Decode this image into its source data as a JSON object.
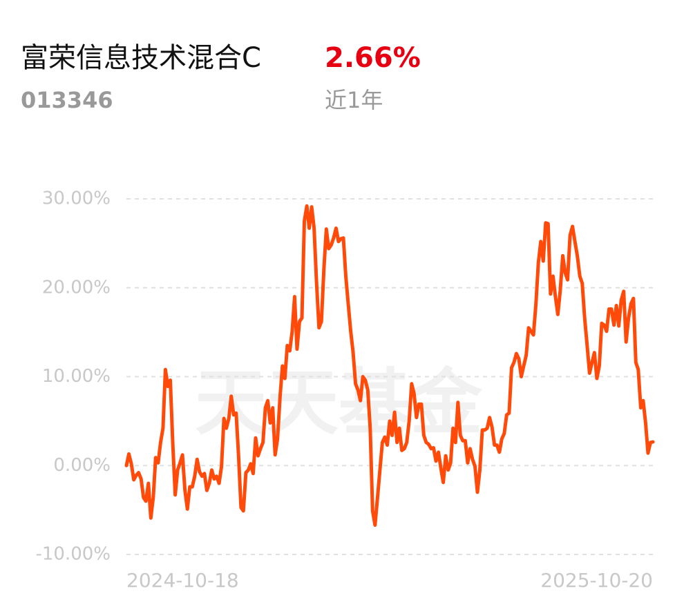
{
  "header": {
    "title": "富荣信息技术混合C",
    "change": {
      "value": 2.66,
      "label": "2.66%"
    },
    "code": "013346",
    "period": "近1年"
  },
  "chart_data": {
    "type": "line",
    "watermark": "天天基金",
    "categories": [
      "2024-10-18",
      null,
      null,
      null,
      null,
      null,
      null,
      null,
      null,
      null,
      null,
      null,
      null,
      null,
      null,
      null,
      null,
      null,
      null,
      null,
      null,
      null,
      null,
      null,
      null,
      null,
      null,
      null,
      null,
      null,
      null,
      null,
      null,
      null,
      null,
      null,
      null,
      null,
      null,
      null,
      null,
      null,
      null,
      null,
      null,
      null,
      null,
      null,
      null,
      null,
      null,
      null,
      null,
      null,
      null,
      null,
      null,
      null,
      null,
      null,
      null,
      null,
      null,
      null,
      null,
      null,
      null,
      null,
      null,
      null,
      null,
      null,
      null,
      null,
      null,
      null,
      null,
      null,
      null,
      null,
      null,
      null,
      null,
      null,
      null,
      null,
      null,
      null,
      null,
      null,
      null,
      null,
      null,
      null,
      null,
      null,
      null,
      null,
      null,
      null,
      null,
      null,
      null,
      null,
      null,
      null,
      null,
      null,
      null,
      null,
      null,
      null,
      null,
      null,
      null,
      null,
      null,
      null,
      null,
      null,
      null,
      null,
      null,
      null,
      null,
      null,
      null,
      null,
      null,
      null,
      null,
      null,
      null,
      null,
      null,
      null,
      null,
      null,
      null,
      null,
      null,
      null,
      null,
      null,
      null,
      null,
      null,
      null,
      null,
      null,
      null,
      null,
      null,
      null,
      null,
      null,
      null,
      null,
      null,
      null,
      null,
      null,
      null,
      null,
      null,
      null,
      null,
      null,
      null,
      null,
      null,
      null,
      null,
      null,
      null,
      null,
      null,
      null,
      null,
      null,
      null,
      null,
      null,
      null,
      null,
      null,
      null,
      null,
      null,
      null,
      null,
      null,
      null,
      null,
      null,
      null,
      null,
      null,
      null,
      null,
      null,
      null,
      null,
      null,
      null,
      null,
      null,
      null,
      null,
      null,
      null,
      null,
      null,
      null,
      null,
      null,
      "2025-10-20"
    ],
    "series": [
      {
        "color": "#ff4a0a",
        "values": [
          0,
          1.3,
          0.2,
          -1.6,
          -1.1,
          -0.8,
          -1.5,
          -3.6,
          -4.0,
          -2.0,
          -5.9,
          -3.6,
          0.9,
          0.3,
          2.6,
          4.2,
          10.8,
          8.9,
          9.6,
          2.6,
          -3.3,
          -0.5,
          0.3,
          1.2,
          -2.8,
          -4.9,
          -2.4,
          -2.4,
          -1.2,
          0.7,
          -0.7,
          -1.2,
          -0.9,
          -2.8,
          -2.0,
          -0.5,
          -1.5,
          -1.2,
          -2.0,
          -0.1,
          5.3,
          4.2,
          5.3,
          7.8,
          5.7,
          5.9,
          1.1,
          -4.7,
          -5.1,
          -0.8,
          -0.5,
          0.2,
          -0.9,
          3.1,
          1.1,
          1.9,
          2.6,
          6.5,
          7.3,
          4.8,
          6.5,
          1.2,
          3.0,
          7.7,
          11.2,
          9.8,
          13.5,
          12.9,
          15.1,
          19.0,
          13.1,
          16.2,
          16.6,
          27.5,
          29.2,
          26.7,
          29.1,
          26.7,
          20.5,
          15.5,
          16.2,
          22.1,
          26.6,
          24.4,
          24.8,
          25.6,
          26.7,
          25.2,
          25.5,
          25.6,
          21.3,
          18.2,
          15.1,
          12.7,
          9.2,
          8.5,
          7.3,
          10.0,
          9.6,
          8.5,
          4.2,
          -5.1,
          -6.7,
          -3.6,
          -0.5,
          2.6,
          3.2,
          2.3,
          5.0,
          3.4,
          6.0,
          2.6,
          4.2,
          1.7,
          1.9,
          2.6,
          5.0,
          9.2,
          8.1,
          5.4,
          6.9,
          6.9,
          3.4,
          2.6,
          2.4,
          1.9,
          2.0,
          0.5,
          1.5,
          -0.3,
          -1.9,
          1.1,
          -0.5,
          0.3,
          4.2,
          2.6,
          7.1,
          3.4,
          2.8,
          2.8,
          0.3,
          1.9,
          0.7,
          -0.1,
          -3.0,
          -0.5,
          4.0,
          4.0,
          4.2,
          5.4,
          4.3,
          2.3,
          2.3,
          1.5,
          3.0,
          3.6,
          5.7,
          5.9,
          11.0,
          11.6,
          12.6,
          12.0,
          10.0,
          11.2,
          12.4,
          15.5,
          15.1,
          14.7,
          18.2,
          22.8,
          25.2,
          23.0,
          27.3,
          27.2,
          19.3,
          21.3,
          19.0,
          17.0,
          19.7,
          23.6,
          21.7,
          20.9,
          25.9,
          26.9,
          25.2,
          23.6,
          21.3,
          20.5,
          16.6,
          13.5,
          10.4,
          11.6,
          12.7,
          9.8,
          11.2,
          16.0,
          15.8,
          15.1,
          17.6,
          17.6,
          15.8,
          18.0,
          15.7,
          18.6,
          19.6,
          13.9,
          16.6,
          18.2,
          18.8,
          11.6,
          10.8,
          6.5,
          7.3,
          4.8,
          1.4,
          2.6,
          2.66
        ]
      }
    ],
    "ylim": [
      -10,
      30
    ],
    "yticks": [
      {
        "value": 30,
        "label": "30.00%"
      },
      {
        "value": 20,
        "label": "20.00%"
      },
      {
        "value": 10,
        "label": "10.00%"
      },
      {
        "value": 0,
        "label": "0.00%"
      },
      {
        "value": -10,
        "label": "-10.00%"
      }
    ],
    "grid": true
  }
}
